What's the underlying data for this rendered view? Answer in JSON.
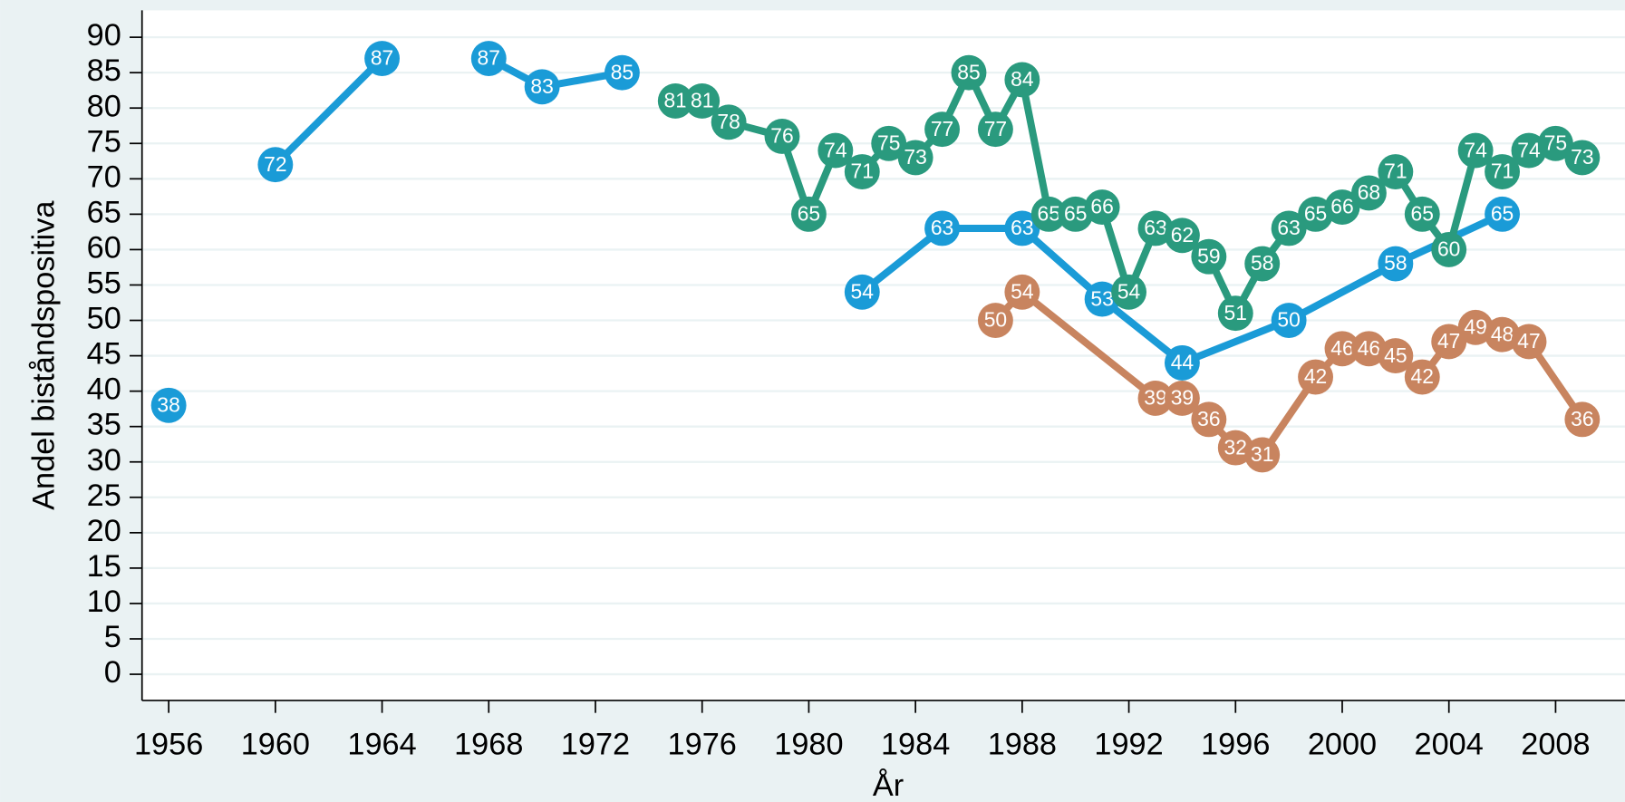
{
  "chart_data": {
    "type": "line",
    "xlabel": "År",
    "ylabel": "Andel biståndspositiva",
    "series": [
      {
        "color": "#1a9bd7",
        "x": [
          1956,
          null,
          1960,
          1964,
          null,
          1968,
          1970,
          1973,
          null,
          1982,
          1985,
          1988,
          1991,
          1994,
          1998,
          2002,
          2006
        ],
        "values": [
          38,
          null,
          72,
          87,
          null,
          87,
          83,
          85,
          null,
          54,
          63,
          63,
          53,
          44,
          50,
          58,
          65
        ]
      },
      {
        "color": "#2a9a7e",
        "x": [
          1975,
          1976,
          1977,
          1979,
          1980,
          1981,
          1982,
          1983,
          1984,
          1985,
          1986,
          1987,
          1988,
          1989,
          1990,
          1991,
          1992,
          1993,
          1994,
          1995,
          1996,
          1997,
          1998,
          1999,
          2000,
          2001,
          2002,
          2003,
          2004,
          2005,
          2006,
          2007,
          2008,
          2009
        ],
        "values": [
          81,
          81,
          78,
          76,
          65,
          74,
          71,
          75,
          73,
          77,
          85,
          77,
          84,
          65,
          65,
          66,
          54,
          63,
          62,
          59,
          51,
          58,
          63,
          65,
          66,
          68,
          71,
          65,
          60,
          74,
          71,
          74,
          75,
          73
        ]
      },
      {
        "color": "#c8845f",
        "x": [
          1987,
          1988,
          1993,
          1994,
          1995,
          1996,
          1997,
          1999,
          2000,
          2001,
          2002,
          2003,
          2004,
          2005,
          2006,
          2007,
          2009
        ],
        "values": [
          50,
          54,
          39,
          39,
          36,
          32,
          31,
          42,
          46,
          46,
          45,
          42,
          47,
          49,
          48,
          47,
          36
        ]
      }
    ],
    "xlim": [
      1955,
      2010.6
    ],
    "xticks": [
      1956,
      1960,
      1964,
      1968,
      1972,
      1976,
      1980,
      1984,
      1988,
      1992,
      1996,
      2000,
      2004,
      2008
    ],
    "ylim": [
      -3.7,
      93.8
    ],
    "yticks": [
      0,
      5,
      10,
      15,
      20,
      25,
      30,
      35,
      40,
      45,
      50,
      55,
      60,
      65,
      70,
      75,
      80,
      85,
      90
    ],
    "grid": true
  }
}
